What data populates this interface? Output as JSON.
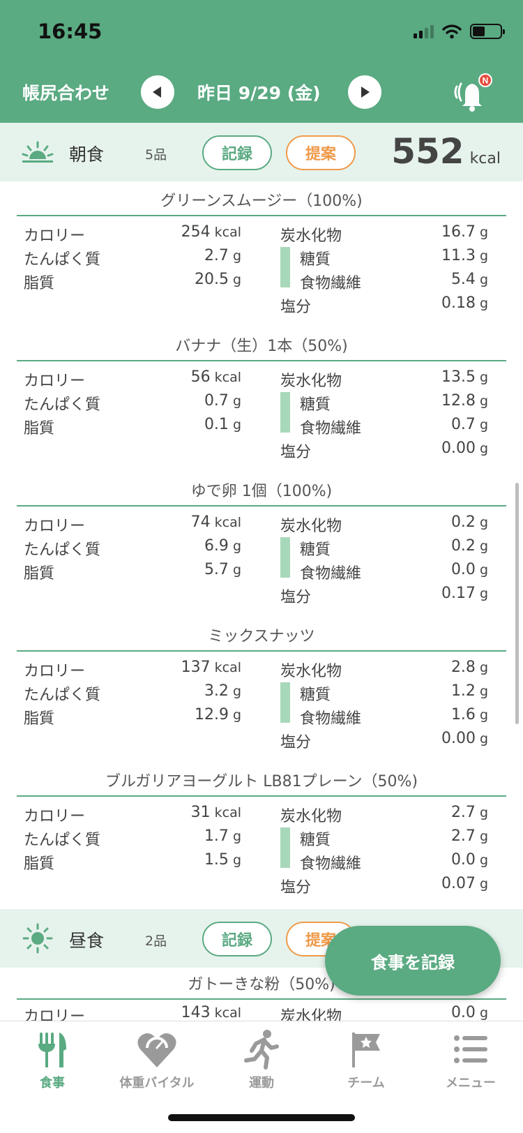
{
  "status_bar": {
    "time": "16:45"
  },
  "header": {
    "left_link": "帳尻合わせ",
    "date_title": "昨日 9/29 (金)",
    "notification_badge": "N"
  },
  "colors": {
    "primary": "#5aaa82",
    "accent": "#ef9a4a",
    "section_bg": "#e6f3ec",
    "sugar_bar": "#a8d8ba"
  },
  "breakfast": {
    "icon": "sunrise-icon",
    "name": "朝食",
    "count": "5品",
    "record_label": "記録",
    "suggest_label": "提案",
    "kcal": "552",
    "kcal_unit": "kcal",
    "foods": [
      {
        "title": "グリーンスムージー（100%)",
        "calories": "254",
        "protein": "2.7",
        "fat": "20.5",
        "carbs": "16.7",
        "sugar": "11.3",
        "fiber": "5.4",
        "salt": "0.18"
      },
      {
        "title": "バナナ（生）1本（50%)",
        "calories": "56",
        "protein": "0.7",
        "fat": "0.1",
        "carbs": "13.5",
        "sugar": "12.8",
        "fiber": "0.7",
        "salt": "0.00"
      },
      {
        "title": "ゆで卵 1個（100%)",
        "calories": "74",
        "protein": "6.9",
        "fat": "5.7",
        "carbs": "0.2",
        "sugar": "0.2",
        "fiber": "0.0",
        "salt": "0.17"
      },
      {
        "title": "ミックスナッツ",
        "calories": "137",
        "protein": "3.2",
        "fat": "12.9",
        "carbs": "2.8",
        "sugar": "1.2",
        "fiber": "1.6",
        "salt": "0.00"
      },
      {
        "title": "ブルガリアヨーグルト LB81プレーン（50%)",
        "calories": "31",
        "protein": "1.7",
        "fat": "1.5",
        "carbs": "2.7",
        "sugar": "2.7",
        "fiber": "0.0",
        "salt": "0.07"
      }
    ]
  },
  "labels": {
    "calories": "カロリー",
    "protein": "たんぱく質",
    "fat": "脂質",
    "carbs": "炭水化物",
    "sugar": "糖質",
    "fiber": "食物繊維",
    "salt": "塩分",
    "kcal": "kcal",
    "g": "g"
  },
  "lunch": {
    "icon": "sun-icon",
    "name": "昼食",
    "count": "2品",
    "record_label": "記録",
    "suggest_label": "提案",
    "foods": [
      {
        "title": "ガトーきな粉（50%)",
        "calories": "143",
        "carbs": "0.0"
      }
    ]
  },
  "fab_label": "食事を記録",
  "tabs": [
    {
      "label": "食事",
      "icon": "fork-knife-icon",
      "active": true
    },
    {
      "label": "体重バイタル",
      "icon": "heart-scale-icon",
      "active": false
    },
    {
      "label": "運動",
      "icon": "runner-icon",
      "active": false
    },
    {
      "label": "チーム",
      "icon": "flag-star-icon",
      "active": false
    },
    {
      "label": "メニュー",
      "icon": "menu-list-icon",
      "active": false
    }
  ]
}
